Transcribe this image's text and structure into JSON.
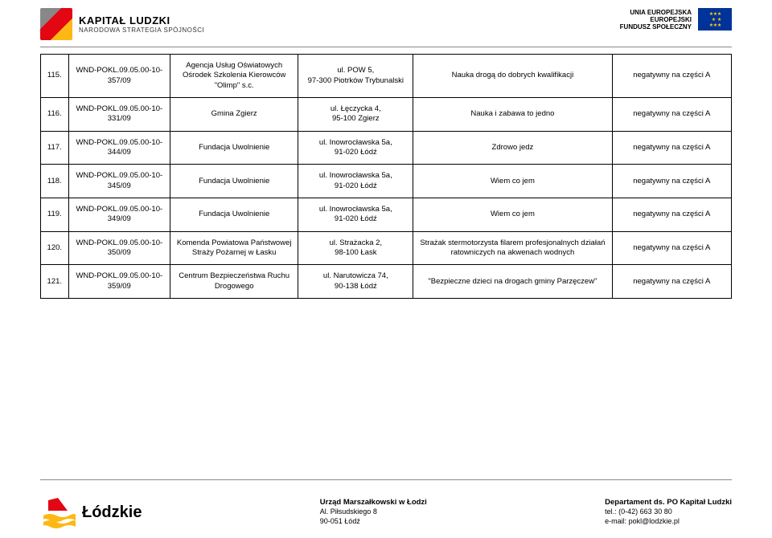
{
  "header": {
    "kl_title": "KAPITAŁ LUDZKI",
    "kl_subtitle": "NARODOWA STRATEGIA SPÓJNOŚCI",
    "eu_line1": "UNIA EUROPEJSKA",
    "eu_line2": "EUROPEJSKI",
    "eu_line3": "FUNDUSZ SPOŁECZNY"
  },
  "rows": [
    {
      "num": "115.",
      "code": "WND-POKL.09.05.00-10-357/09",
      "org": "Agencja Usług Oświatowych Ośrodek Szkolenia Kierowców \"Olimp\" s.c.",
      "addr": "ul. POW 5,\n97-300 Piotrków Trybunalski",
      "title": "Nauka drogą do dobrych kwalifikacji",
      "result": "negatywny na części A"
    },
    {
      "num": "116.",
      "code": "WND-POKL.09.05.00-10-331/09",
      "org": "Gmina Zgierz",
      "addr": "ul. Łęczycka 4,\n95-100 Zgierz",
      "title": "Nauka i zabawa to jedno",
      "result": "negatywny na części A"
    },
    {
      "num": "117.",
      "code": "WND-POKL.09.05.00-10-344/09",
      "org": "Fundacja Uwolnienie",
      "addr": "ul. Inowrocławska 5a,\n91-020 Łódź",
      "title": "Zdrowo jedz",
      "result": "negatywny na części A"
    },
    {
      "num": "118.",
      "code": "WND-POKL.09.05.00-10-345/09",
      "org": "Fundacja Uwolnienie",
      "addr": "ul. Inowrocławska 5a,\n91-020 Łódź",
      "title": "Wiem co jem",
      "result": "negatywny na części A"
    },
    {
      "num": "119.",
      "code": "WND-POKL.09.05.00-10-349/09",
      "org": "Fundacja Uwolnienie",
      "addr": "ul. Inowrocławska 5a,\n91-020 Łódź",
      "title": "Wiem co jem",
      "result": "negatywny na części A"
    },
    {
      "num": "120.",
      "code": "WND-POKL.09.05.00-10-350/09",
      "org": "Komenda Powiatowa Państwowej Straży Pożarnej w Łasku",
      "addr": "ul. Strażacka 2,\n98-100 Łask",
      "title": "Strażak stermotorzysta filarem profesjonalnych działań ratowniczych na akwenach wodnych",
      "result": "negatywny na części A"
    },
    {
      "num": "121.",
      "code": "WND-POKL.09.05.00-10-359/09",
      "org": "Centrum Bezpieczeństwa Ruchu Drogowego",
      "addr": "ul. Narutowicza 74,\n90-138 Łódź",
      "title": "\"Bezpieczne dzieci na drogach gminy Parzęczew\"",
      "result": "negatywny na części A"
    }
  ],
  "footer": {
    "lodz_label": "Łódzkie",
    "mid_title": "Urząd Marszałkowski w Łodzi",
    "mid_addr1": "Al. Piłsudskiego 8",
    "mid_addr2": "90-051 Łódź",
    "right_title": "Departament ds. PO Kapitał Ludzki",
    "right_tel": "tel.: (0-42) 663 30 80",
    "right_email": "e-mail: pokl@lodzkie.pl"
  },
  "colors": {
    "border": "#000000",
    "red": "#e30613",
    "yellow": "#fdb813",
    "eu_blue": "#003399"
  }
}
